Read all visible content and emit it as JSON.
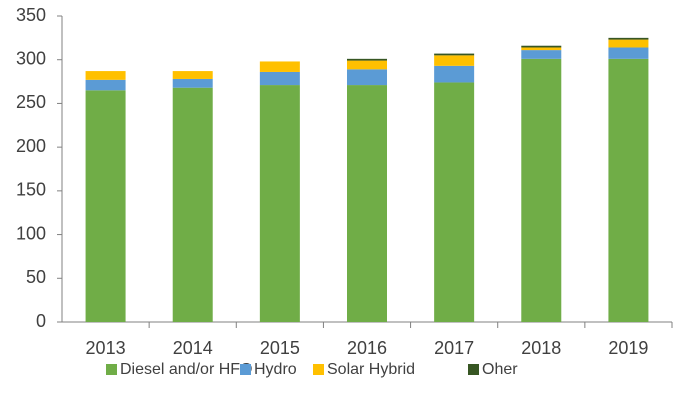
{
  "chart_data": {
    "type": "stacked_bar",
    "categories": [
      "2013",
      "2014",
      "2015",
      "2016",
      "2017",
      "2018",
      "2019"
    ],
    "series": [
      {
        "name": "Diesel and/or HFO",
        "color": "#70ad47",
        "values": [
          265,
          268,
          271,
          271,
          274,
          301,
          301
        ]
      },
      {
        "name": "Hydro",
        "color": "#5b9bd5",
        "values": [
          12,
          10,
          15,
          18,
          19,
          10,
          13
        ]
      },
      {
        "name": "Solar Hybrid",
        "color": "#ffc000",
        "values": [
          10,
          9,
          12,
          10,
          12,
          3,
          9
        ]
      },
      {
        "name": "Oher",
        "color": "#375623",
        "values": [
          0,
          0,
          0,
          2,
          2,
          2,
          2
        ]
      }
    ],
    "ylim": [
      0,
      350
    ],
    "yticks": [
      0,
      50,
      100,
      150,
      200,
      250,
      300,
      350
    ],
    "grid": false,
    "legend": "bottom"
  }
}
